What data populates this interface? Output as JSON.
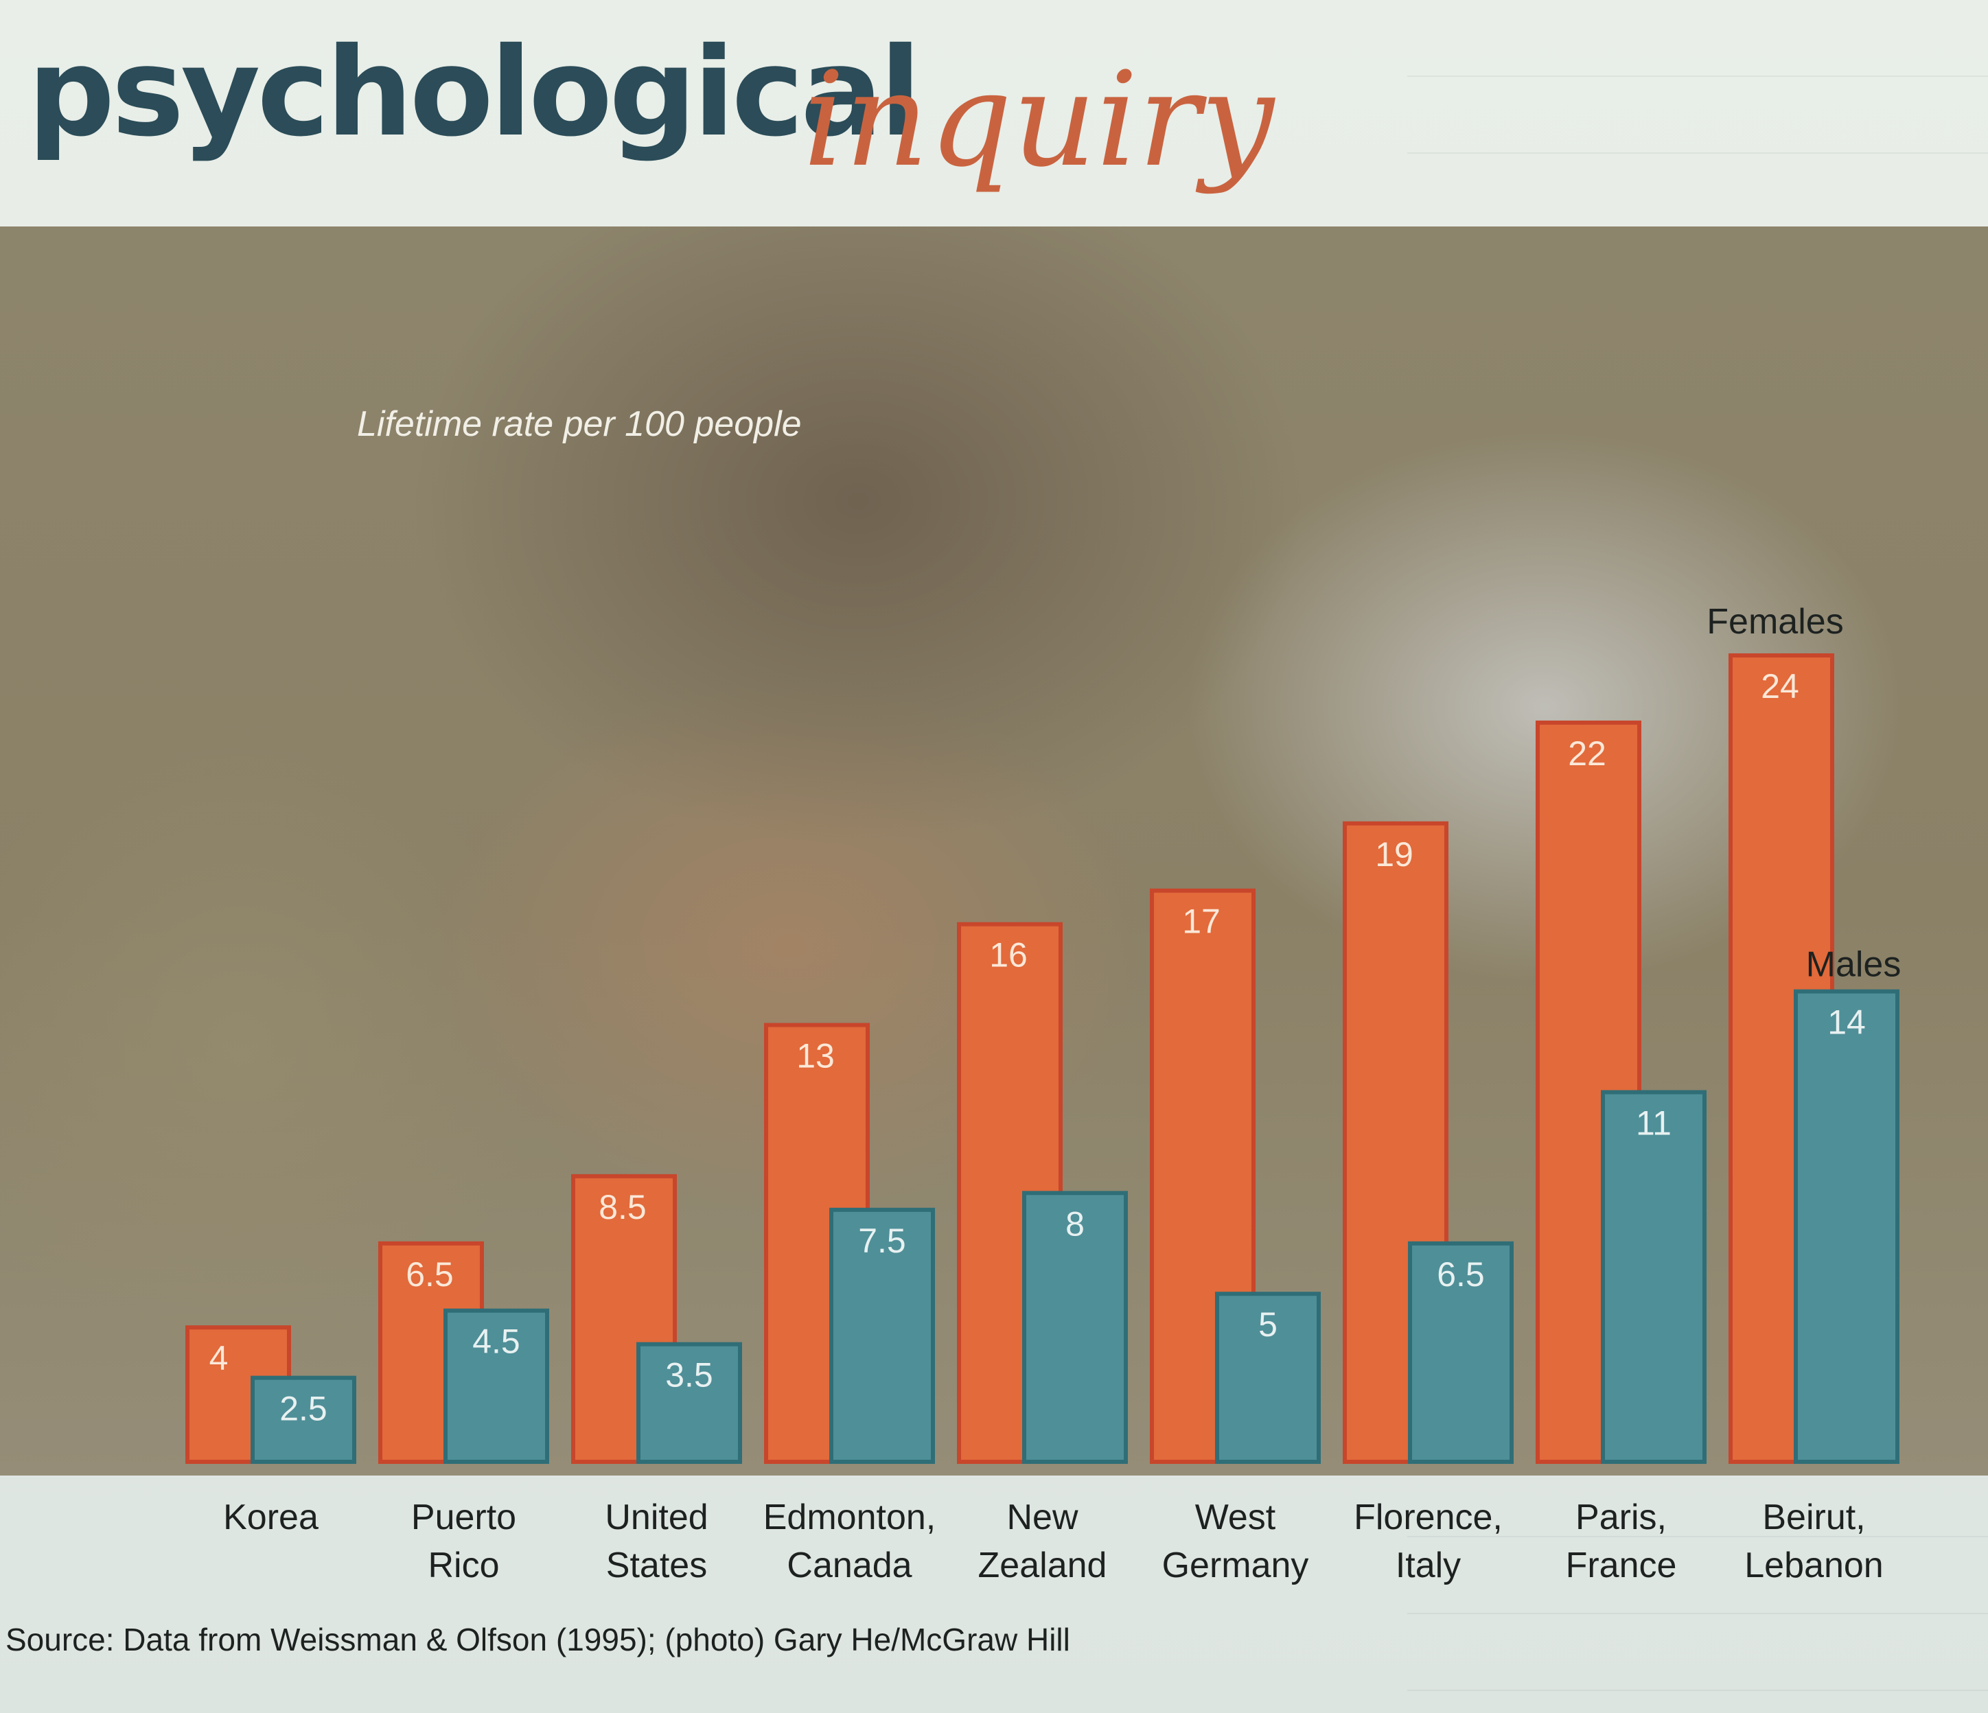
{
  "header": {
    "title_main": "psychological",
    "title_accent": "inquiry"
  },
  "colors": {
    "females": "#e26a3b",
    "females_stroke": "#c8462b",
    "males": "#4f8f98",
    "males_stroke": "#2f6e77",
    "title_dark": "#2b4c58",
    "title_accent": "#c9633f"
  },
  "chart_data": {
    "type": "bar",
    "title": "Lifetime rate per 100 people",
    "xlabel": "",
    "ylabel": "",
    "ylim": [
      0,
      24
    ],
    "grid": false,
    "legend": "series labels above the rightmost bars",
    "categories": [
      [
        "Korea"
      ],
      [
        "Puerto",
        "Rico"
      ],
      [
        "United",
        "States"
      ],
      [
        "Edmonton,",
        "Canada"
      ],
      [
        "New",
        "Zealand"
      ],
      [
        "West",
        "Germany"
      ],
      [
        "Florence,",
        "Italy"
      ],
      [
        "Paris,",
        "France"
      ],
      [
        "Beirut,",
        "Lebanon"
      ]
    ],
    "series": [
      {
        "name": "Females",
        "values": [
          4,
          6.5,
          8.5,
          13,
          16,
          17,
          19,
          22,
          24
        ]
      },
      {
        "name": "Males",
        "values": [
          2.5,
          4.5,
          3.5,
          7.5,
          8,
          5,
          6.5,
          11,
          14
        ]
      }
    ],
    "value_labels": {
      "Females": [
        "4",
        "6.5",
        "8.5",
        "13",
        "16",
        "17",
        "19",
        "22",
        "24"
      ],
      "Males": [
        "2.5",
        "4.5",
        "3.5",
        "7.5",
        "8",
        "5",
        "6.5",
        "11",
        "14"
      ]
    }
  },
  "caption": {
    "source": "Source: Data from Weissman & Olfson (1995); (photo) Gary He/McGraw Hill"
  }
}
